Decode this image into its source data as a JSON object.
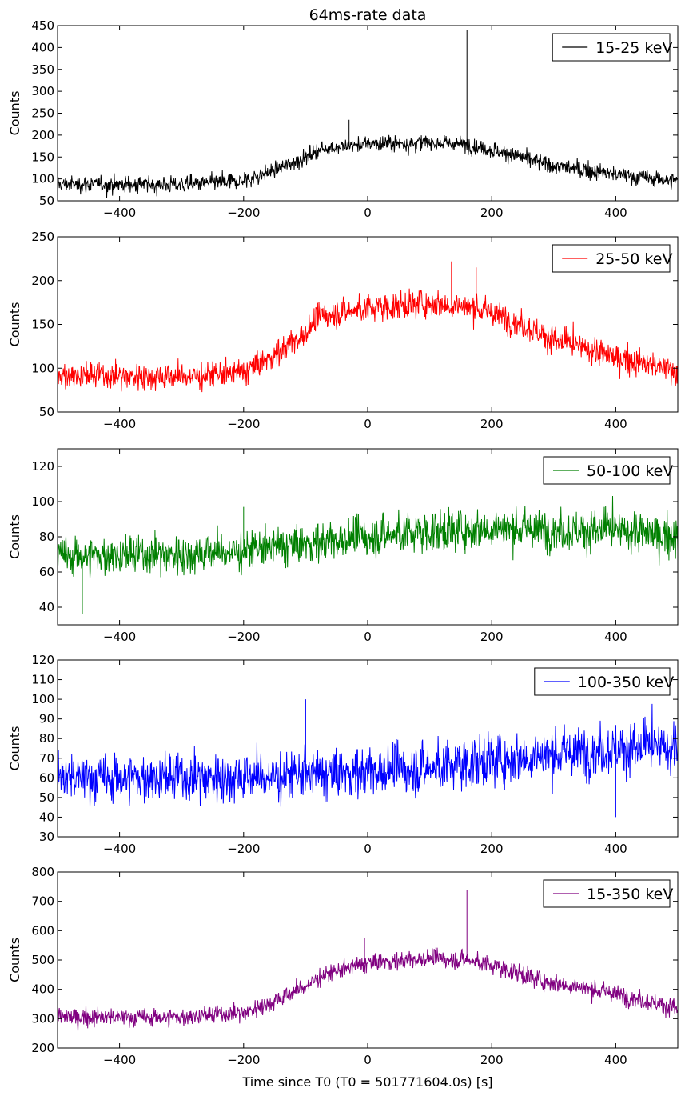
{
  "chart_data": {
    "type": "line",
    "title": "64ms-rate data",
    "xlabel": "Time since T0 (T0 = 501771604.0s) [s]",
    "xlim": [
      -500,
      500
    ],
    "xticks": [
      -400,
      -200,
      0,
      200,
      400
    ],
    "xtick_labels": [
      "−400",
      "−200",
      "0",
      "200",
      "400"
    ],
    "grid": false,
    "legend_placement": "top-right",
    "panels": [
      {
        "ylabel": "Counts",
        "ylim": [
          50,
          450
        ],
        "yticks": [
          50,
          100,
          150,
          200,
          250,
          300,
          350,
          400,
          450
        ],
        "series": [
          {
            "name": "15-25 keV",
            "color": "#000000",
            "baseline": [
              [
                -500,
                88
              ],
              [
                -300,
                87
              ],
              [
                -200,
                95
              ],
              [
                -150,
                120
              ],
              [
                -100,
                150
              ],
              [
                -70,
                170
              ],
              [
                0,
                180
              ],
              [
                100,
                183
              ],
              [
                160,
                178
              ],
              [
                220,
                160
              ],
              [
                300,
                130
              ],
              [
                400,
                110
              ],
              [
                500,
                95
              ]
            ],
            "noise": 13,
            "spikes": [
              [
                160,
                440
              ],
              [
                -30,
                235
              ]
            ]
          }
        ]
      },
      {
        "ylabel": "Counts",
        "ylim": [
          50,
          250
        ],
        "yticks": [
          50,
          100,
          150,
          200,
          250
        ],
        "series": [
          {
            "name": "25-50 keV",
            "color": "#ff0000",
            "baseline": [
              [
                -500,
                92
              ],
              [
                -300,
                90
              ],
              [
                -200,
                95
              ],
              [
                -150,
                115
              ],
              [
                -100,
                140
              ],
              [
                -75,
                160
              ],
              [
                0,
                168
              ],
              [
                100,
                175
              ],
              [
                180,
                168
              ],
              [
                250,
                150
              ],
              [
                300,
                132
              ],
              [
                400,
                112
              ],
              [
                500,
                97
              ]
            ],
            "noise": 11,
            "spikes": [
              [
                135,
                222
              ],
              [
                175,
                215
              ]
            ]
          }
        ]
      },
      {
        "ylabel": "Counts",
        "ylim": [
          30,
          130
        ],
        "yticks": [
          40,
          60,
          80,
          100,
          120
        ],
        "series": [
          {
            "name": "50-100 keV",
            "color": "#008000",
            "baseline": [
              [
                -500,
                69
              ],
              [
                -300,
                70
              ],
              [
                -200,
                72
              ],
              [
                -100,
                76
              ],
              [
                0,
                80
              ],
              [
                100,
                83
              ],
              [
                200,
                85
              ],
              [
                300,
                84
              ],
              [
                400,
                83
              ],
              [
                500,
                80
              ]
            ],
            "noise": 8,
            "spikes": [
              [
                -460,
                36
              ],
              [
                -200,
                97
              ]
            ]
          }
        ]
      },
      {
        "ylabel": "Counts",
        "ylim": [
          30,
          120
        ],
        "yticks": [
          30,
          40,
          50,
          60,
          70,
          80,
          90,
          100,
          110,
          120
        ],
        "series": [
          {
            "name": "100-350 keV",
            "color": "#0000ff",
            "baseline": [
              [
                -500,
                60
              ],
              [
                -300,
                60
              ],
              [
                -100,
                61
              ],
              [
                0,
                63
              ],
              [
                100,
                65
              ],
              [
                200,
                69
              ],
              [
                300,
                72
              ],
              [
                400,
                75
              ],
              [
                500,
                75
              ]
            ],
            "noise": 9,
            "spikes": [
              [
                -100,
                100
              ],
              [
                400,
                40
              ]
            ]
          }
        ]
      },
      {
        "ylabel": "Counts",
        "ylim": [
          200,
          800
        ],
        "yticks": [
          200,
          300,
          400,
          500,
          600,
          700,
          800
        ],
        "series": [
          {
            "name": "15-350 keV",
            "color": "#800080",
            "baseline": [
              [
                -500,
                305
              ],
              [
                -300,
                305
              ],
              [
                -200,
                320
              ],
              [
                -150,
                360
              ],
              [
                -100,
                410
              ],
              [
                -75,
                445
              ],
              [
                0,
                490
              ],
              [
                100,
                505
              ],
              [
                160,
                500
              ],
              [
                220,
                470
              ],
              [
                280,
                430
              ],
              [
                400,
                385
              ],
              [
                500,
                335
              ]
            ],
            "noise": 22,
            "spikes": [
              [
                160,
                740
              ],
              [
                -5,
                575
              ]
            ]
          }
        ]
      }
    ]
  }
}
